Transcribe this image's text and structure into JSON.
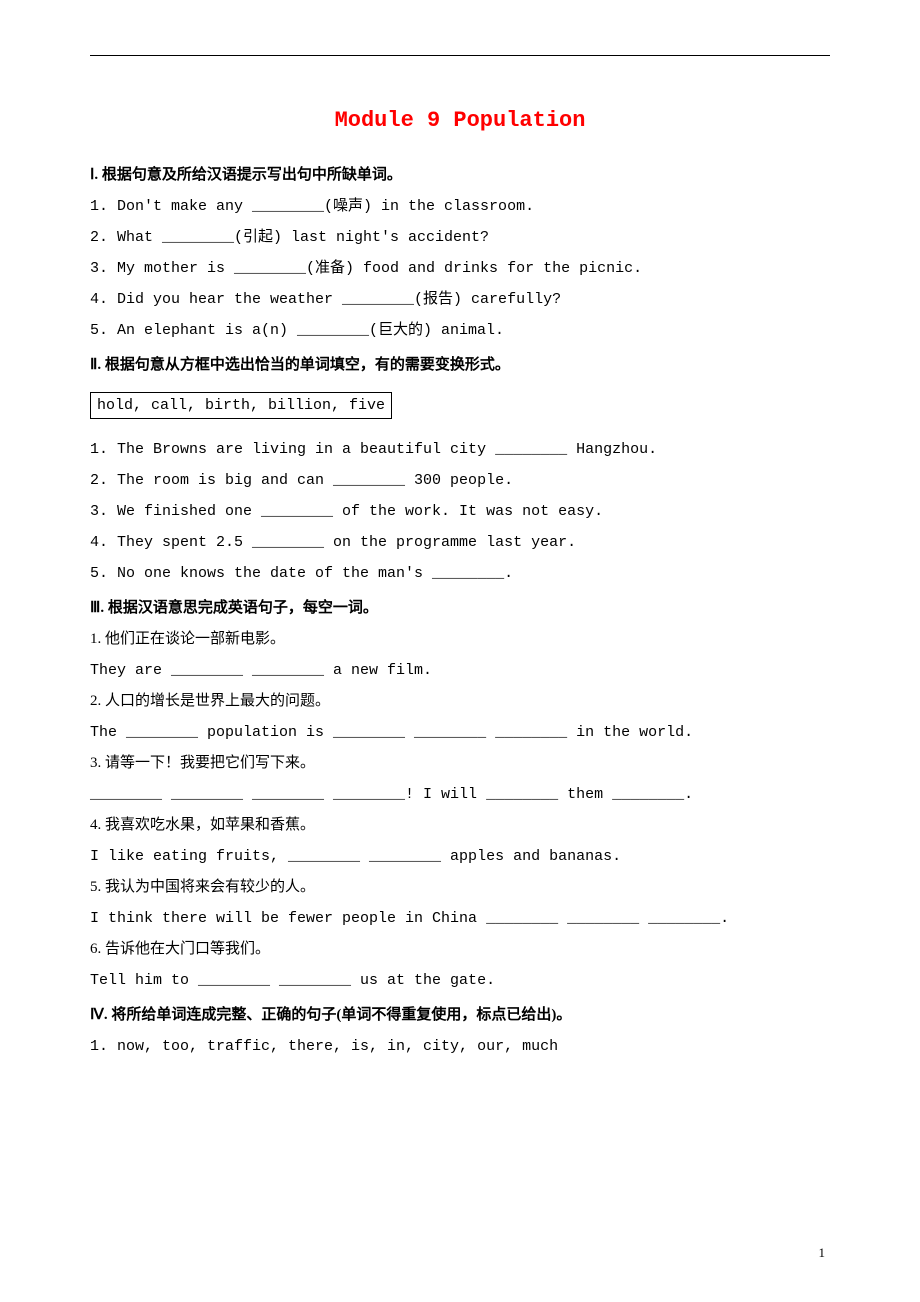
{
  "title": "Module 9 Population",
  "section1": {
    "heading": "Ⅰ. 根据句意及所给汉语提示写出句中所缺单词。",
    "items": [
      "1. Don't make any ________(噪声) in the classroom.",
      "2. What ________(引起) last night's accident?",
      "3. My mother is ________(准备) food and drinks for the picnic.",
      "4. Did you hear the weather ________(报告) carefully?",
      "5. An elephant is a(n) ________(巨大的) animal."
    ]
  },
  "section2": {
    "heading": "Ⅱ. 根据句意从方框中选出恰当的单词填空，有的需要变换形式。",
    "wordbox": "hold, call, birth, billion, five",
    "items": [
      "1. The Browns are living in a beautiful city ________ Hangzhou.",
      "2. The room is big and can ________ 300 people.",
      "3. We finished one ________ of the work. It was not easy.",
      "4. They spent 2.5 ________ on the programme last year.",
      "5. No one knows the date of the man's ________."
    ]
  },
  "section3": {
    "heading": "Ⅲ. 根据汉语意思完成英语句子，每空一词。",
    "pairs": [
      {
        "cn": "1. 他们正在谈论一部新电影。",
        "en": "They are ________ ________ a new film."
      },
      {
        "cn": "2. 人口的增长是世界上最大的问题。",
        "en": "The ________ population is ________ ________ ________ in the world."
      },
      {
        "cn": "3. 请等一下！我要把它们写下来。",
        "en": "________ ________ ________ ________! I will ________ them ________."
      },
      {
        "cn": "4. 我喜欢吃水果，如苹果和香蕉。",
        "en": "I like eating fruits, ________ ________ apples and bananas."
      },
      {
        "cn": "5. 我认为中国将来会有较少的人。",
        "en": "I think there will be fewer people in China ________ ________ ________."
      },
      {
        "cn": "6. 告诉他在大门口等我们。",
        "en": "Tell him to ________ ________ us at the gate."
      }
    ]
  },
  "section4": {
    "heading": "Ⅳ. 将所给单词连成完整、正确的句子(单词不得重复使用，标点已给出)。",
    "items": [
      "1. now, too, traffic, there, is, in, city, our, much"
    ]
  },
  "pageNumber": "1"
}
